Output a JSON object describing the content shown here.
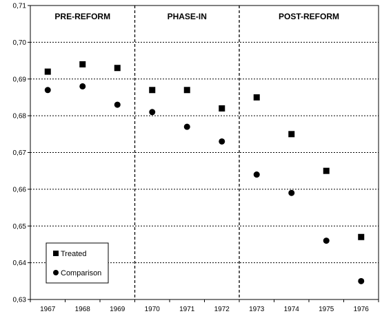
{
  "chart_data": {
    "type": "scatter",
    "x": [
      "1967",
      "1968",
      "1969",
      "1970",
      "1971",
      "1972",
      "1973",
      "1974",
      "1975",
      "1976"
    ],
    "series": [
      {
        "name": "Treated",
        "marker": "square",
        "values": [
          0.692,
          0.694,
          0.693,
          0.687,
          0.687,
          0.682,
          0.685,
          0.675,
          0.665,
          0.647
        ]
      },
      {
        "name": "Comparison",
        "marker": "circle",
        "values": [
          0.687,
          0.688,
          0.683,
          0.681,
          0.677,
          0.673,
          0.664,
          0.659,
          0.646,
          0.635
        ]
      }
    ],
    "ylim": [
      0.63,
      0.71
    ],
    "yticks": [
      "0,63",
      "0,64",
      "0,65",
      "0,66",
      "0,67",
      "0,68",
      "0,69",
      "0,70",
      "0,71"
    ],
    "periods": [
      {
        "label": "PRE-REFORM",
        "from": "1967",
        "to": "1969"
      },
      {
        "label": "PHASE-IN",
        "from": "1970",
        "to": "1972"
      },
      {
        "label": "POST-REFORM",
        "from": "1973",
        "to": "1976"
      }
    ],
    "grid": "horizontal-dashed",
    "legend_position": "bottom-left",
    "marker_color": "#000000"
  }
}
